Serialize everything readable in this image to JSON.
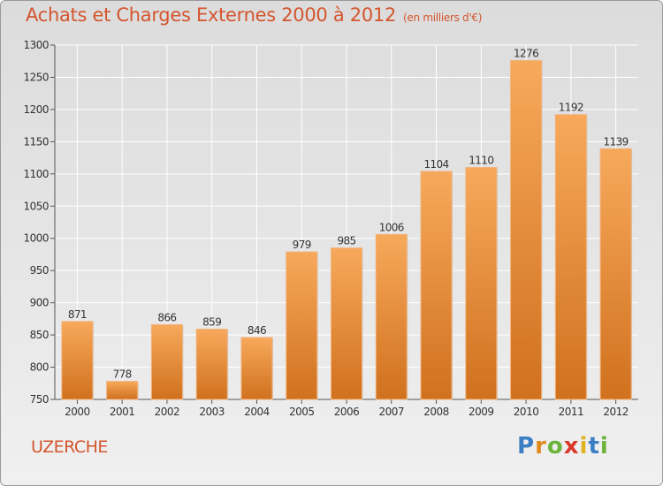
{
  "title": "Achats et Charges Externes 2000 à 2012",
  "unit": "(en milliers d'€)",
  "commune": "UZERCHE",
  "logo": {
    "letters": [
      "P",
      "r",
      "o",
      "x",
      "i",
      "t",
      "i"
    ],
    "colors": [
      "#3a7fc4",
      "#e08a1e",
      "#6bb33a",
      "#d9382b",
      "#e0b21e",
      "#3a7fc4",
      "#6bb33a"
    ]
  },
  "colors": {
    "accent": "#d4552e",
    "bar_top": "#f7a95b",
    "bar_bottom": "#d0711e",
    "grid": "#ffffff",
    "axis": "#555555"
  },
  "chart_data": {
    "type": "bar",
    "categories": [
      "2000",
      "2001",
      "2002",
      "2003",
      "2004",
      "2005",
      "2006",
      "2007",
      "2008",
      "2009",
      "2010",
      "2011",
      "2012"
    ],
    "values": [
      871,
      778,
      866,
      859,
      846,
      979,
      985,
      1006,
      1104,
      1110,
      1276,
      1192,
      1139
    ],
    "title": "Achats et Charges Externes 2000 à 2012",
    "subtitle": "(en milliers d'€)",
    "xlabel": "",
    "ylabel": "",
    "ylim": [
      750,
      1300
    ],
    "yticks": [
      750,
      800,
      850,
      900,
      950,
      1000,
      1050,
      1100,
      1150,
      1200,
      1250,
      1300
    ],
    "grid": true,
    "legend": "none"
  }
}
